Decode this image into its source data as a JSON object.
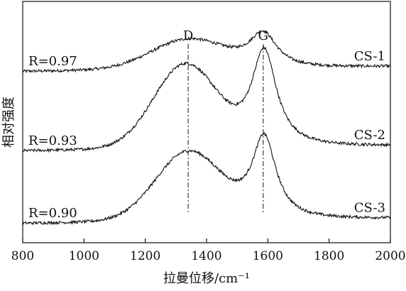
{
  "chart_data": {
    "type": "line",
    "title": "",
    "xlabel": "拉曼位移/cm⁻¹",
    "ylabel": "相对强度",
    "xlim": [
      800,
      2000
    ],
    "ylim": [
      0,
      1
    ],
    "x_ticks": [
      800,
      1000,
      1200,
      1400,
      1600,
      1800,
      2000
    ],
    "y_ticks": [],
    "grid": false,
    "legend": "none",
    "line_color": "#111111",
    "annotations": [
      {
        "name": "peak-d",
        "label": "D",
        "x": 1340
      },
      {
        "name": "peak-g",
        "label": "G",
        "x": 1585
      }
    ],
    "series": [
      {
        "name": "CS-1",
        "r_text": "R=0.97",
        "baseline": 0.71,
        "d_height": 0.12,
        "d_center": 1340,
        "d_width": 170,
        "g_height": 0.14,
        "g_center": 1585,
        "g_width": 55
      },
      {
        "name": "CS-2",
        "r_text": "R=0.93",
        "baseline": 0.38,
        "d_height": 0.34,
        "d_center": 1330,
        "d_width": 145,
        "g_height": 0.4,
        "g_center": 1588,
        "g_width": 50
      },
      {
        "name": "CS-3",
        "r_text": "R=0.90",
        "baseline": 0.08,
        "d_height": 0.28,
        "d_center": 1340,
        "d_width": 150,
        "g_height": 0.34,
        "g_center": 1588,
        "g_width": 48
      }
    ]
  }
}
